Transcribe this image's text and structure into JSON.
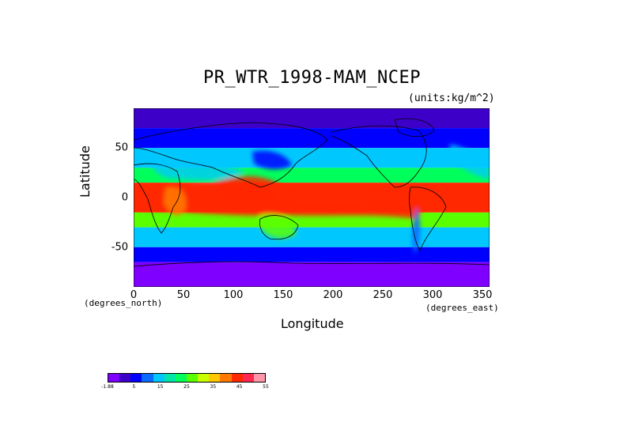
{
  "title": "PR_WTR_1998-MAM_NCEP",
  "units": "(units:kg/m^2)",
  "x_axis": {
    "label": "Longitude",
    "units": "(degrees_east)",
    "ticks": [
      "0",
      "50",
      "100",
      "150",
      "200",
      "250",
      "300",
      "350"
    ]
  },
  "y_axis": {
    "label": "Latitude",
    "units": "(degrees_north)",
    "ticks": [
      "50",
      "0",
      "-50"
    ]
  },
  "colorbar": {
    "colors": [
      "#7f00ff",
      "#3d00c8",
      "#0000ff",
      "#0a6aff",
      "#00c8ff",
      "#00e6a8",
      "#00ff5a",
      "#5aff00",
      "#c8ff00",
      "#ffc800",
      "#ff7800",
      "#ff2800",
      "#ff2850",
      "#ff96aa"
    ],
    "labels": [
      "-1.88",
      "5",
      "15",
      "25",
      "35",
      "45",
      "55"
    ]
  },
  "chart_data": {
    "type": "heatmap",
    "title": "PR_WTR_1998-MAM_NCEP",
    "xlabel": "Longitude",
    "ylabel": "Latitude",
    "xlim": [
      0,
      357.5
    ],
    "ylim": [
      -90,
      90
    ],
    "units": "kg/m^2",
    "zlim": [
      -1.88,
      60
    ],
    "bands": [
      {
        "lat_range": [
          70,
          90
        ],
        "value": 5
      },
      {
        "lat_range": [
          50,
          70
        ],
        "value": 10
      },
      {
        "lat_range": [
          30,
          50
        ],
        "value": 18
      },
      {
        "lat_range": [
          15,
          30
        ],
        "value": 28
      },
      {
        "lat_range": [
          -15,
          15
        ],
        "value": 48
      },
      {
        "lat_range": [
          -30,
          -15
        ],
        "value": 32
      },
      {
        "lat_range": [
          -50,
          -30
        ],
        "value": 20
      },
      {
        "lat_range": [
          -65,
          -50
        ],
        "value": 10
      },
      {
        "lat_range": [
          -90,
          -65
        ],
        "value": 2
      }
    ]
  }
}
